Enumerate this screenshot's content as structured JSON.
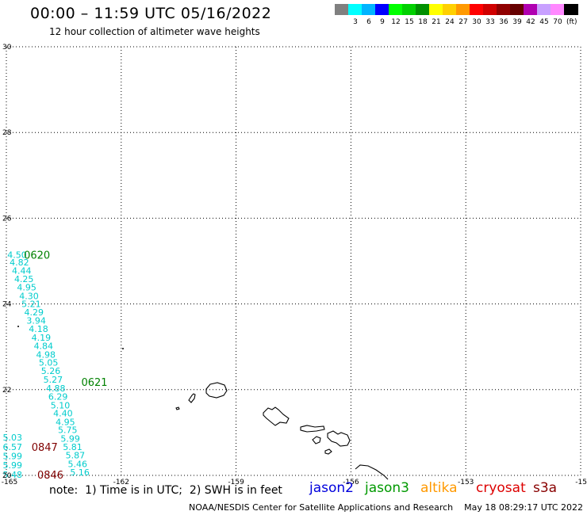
{
  "header": {
    "title": "00:00 – 11:59 UTC 05/16/2022",
    "subtitle": "12 hour collection of altimeter wave heights"
  },
  "legend": {
    "unit": "(ft)",
    "items": [
      {
        "label": "",
        "color": "#808080"
      },
      {
        "label": "3",
        "color": "#00ffff"
      },
      {
        "label": "6",
        "color": "#00b4ff"
      },
      {
        "label": "9",
        "color": "#0000ff"
      },
      {
        "label": "12",
        "color": "#00ff00"
      },
      {
        "label": "15",
        "color": "#00d000"
      },
      {
        "label": "18",
        "color": "#009000"
      },
      {
        "label": "21",
        "color": "#ffff00"
      },
      {
        "label": "24",
        "color": "#ffd000"
      },
      {
        "label": "27",
        "color": "#ff9900"
      },
      {
        "label": "30",
        "color": "#ff0000"
      },
      {
        "label": "33",
        "color": "#d00000"
      },
      {
        "label": "36",
        "color": "#900000"
      },
      {
        "label": "39",
        "color": "#660000"
      },
      {
        "label": "42",
        "color": "#b000b0"
      },
      {
        "label": "45",
        "color": "#c8a0ff"
      },
      {
        "label": "70",
        "color": "#ff88ff"
      },
      {
        "label": "",
        "color": "#000000"
      }
    ]
  },
  "map": {
    "lon_range": [
      -165,
      -150
    ],
    "lat_range": [
      20,
      30
    ],
    "lon_ticks": [
      "-165",
      "-162",
      "-159",
      "-156",
      "-153",
      "-15"
    ],
    "lat_ticks": [
      {
        "lat": 30,
        "label": "30"
      },
      {
        "lat": 28,
        "label": "28"
      },
      {
        "lat": 26,
        "label": "26"
      },
      {
        "lat": 24,
        "label": "24"
      },
      {
        "lat": 22,
        "label": "22"
      },
      {
        "lat": 20,
        "label": "20"
      }
    ],
    "wave_color": "#00cccc",
    "track1": [
      {
        "lat": 25.15,
        "lon": -164.72,
        "text": "4.50"
      },
      {
        "lat": 24.97,
        "lon": -164.66,
        "text": "4.82"
      },
      {
        "lat": 24.78,
        "lon": -164.6,
        "text": "4.44"
      },
      {
        "lat": 24.58,
        "lon": -164.54,
        "text": "4.25"
      },
      {
        "lat": 24.39,
        "lon": -164.47,
        "text": "4.95"
      },
      {
        "lat": 24.19,
        "lon": -164.41,
        "text": "4.30"
      },
      {
        "lat": 24.0,
        "lon": -164.35,
        "text": "5.21"
      },
      {
        "lat": 23.81,
        "lon": -164.28,
        "text": "4.29"
      },
      {
        "lat": 23.61,
        "lon": -164.22,
        "text": "3.94"
      },
      {
        "lat": 23.42,
        "lon": -164.16,
        "text": "4.18"
      },
      {
        "lat": 23.22,
        "lon": -164.09,
        "text": "4.19"
      },
      {
        "lat": 23.02,
        "lon": -164.03,
        "text": "4.84"
      },
      {
        "lat": 22.82,
        "lon": -163.97,
        "text": "4.98"
      },
      {
        "lat": 22.63,
        "lon": -163.9,
        "text": "5.05"
      },
      {
        "lat": 22.44,
        "lon": -163.84,
        "text": "5.26"
      },
      {
        "lat": 22.24,
        "lon": -163.78,
        "text": "5.27"
      },
      {
        "lat": 22.03,
        "lon": -163.71,
        "text": "4.88"
      },
      {
        "lat": 21.84,
        "lon": -163.65,
        "text": "6.29"
      },
      {
        "lat": 21.64,
        "lon": -163.59,
        "text": "5.10"
      },
      {
        "lat": 21.45,
        "lon": -163.52,
        "text": "4.40"
      },
      {
        "lat": 21.25,
        "lon": -163.46,
        "text": "4.95"
      },
      {
        "lat": 21.06,
        "lon": -163.4,
        "text": "5.75"
      },
      {
        "lat": 20.86,
        "lon": -163.33,
        "text": "5.99"
      },
      {
        "lat": 20.67,
        "lon": -163.27,
        "text": "5.81"
      },
      {
        "lat": 20.47,
        "lon": -163.2,
        "text": "5.87"
      },
      {
        "lat": 20.27,
        "lon": -163.14,
        "text": "5.46"
      },
      {
        "lat": 20.07,
        "lon": -163.08,
        "text": "5.16"
      }
    ],
    "track2": [
      {
        "lat": 20.89,
        "lon": -164.84,
        "text": "5.03"
      },
      {
        "lat": 20.67,
        "lon": -164.84,
        "text": "6.57"
      },
      {
        "lat": 20.45,
        "lon": -164.84,
        "text": "5.99"
      },
      {
        "lat": 20.24,
        "lon": -164.84,
        "text": "5.99"
      },
      {
        "lat": 20.02,
        "lon": -164.84,
        "text": "5.48"
      }
    ],
    "times": [
      {
        "lat": 25.15,
        "lon": -164.2,
        "text": "0620",
        "color": "#008000"
      },
      {
        "lat": 22.18,
        "lon": -162.7,
        "text": "0621",
        "color": "#008000"
      },
      {
        "lat": 20.67,
        "lon": -164.0,
        "text": "0847",
        "color": "#800000"
      },
      {
        "lat": 20.02,
        "lon": -163.85,
        "text": "0846",
        "color": "#800000"
      }
    ]
  },
  "footer": {
    "note": "note:  1) Time is in UTC;  2) SWH is in feet",
    "credit": "NOAA/NESDIS Center for Satellite Applications and Research    May 18 08:29:17 UTC 2022",
    "satellites": [
      {
        "name": "jason2",
        "color": "#0000dd"
      },
      {
        "name": "jason3",
        "color": "#009900"
      },
      {
        "name": "altika",
        "color": "#ff9900"
      },
      {
        "name": "cryosat",
        "color": "#dd0000"
      },
      {
        "name": "s3a",
        "color": "#880000"
      }
    ]
  }
}
